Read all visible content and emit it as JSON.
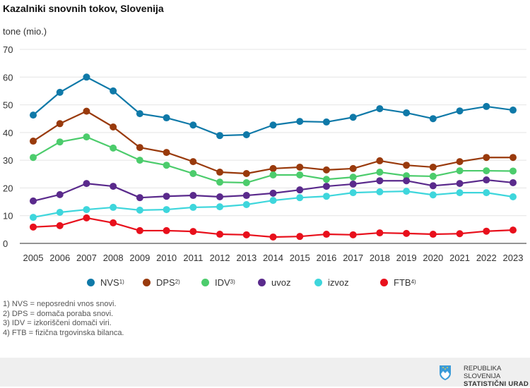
{
  "header": {
    "title": "Kazalniki snovnih tokov, Slovenija",
    "unit_label": "tone (mio.)"
  },
  "chart_data": {
    "type": "line",
    "title": "Kazalniki snovnih tokov, Slovenija",
    "xlabel": "",
    "ylabel": "tone (mio.)",
    "ylim": [
      0,
      70
    ],
    "yticks": [
      0,
      10,
      20,
      30,
      40,
      50,
      60,
      70
    ],
    "grid": true,
    "legend_position": "bottom",
    "x": [
      "2005",
      "2006",
      "2007",
      "2008",
      "2009",
      "2010",
      "2011",
      "2012",
      "2013",
      "2014",
      "2015",
      "2016",
      "2017",
      "2018",
      "2019",
      "2020",
      "2021",
      "2022",
      "2023"
    ],
    "series": [
      {
        "name": "NVS",
        "footnote": "1)",
        "color": "#0f79a8",
        "values": [
          46.3,
          54.5,
          60.0,
          55.0,
          46.8,
          45.3,
          42.7,
          38.9,
          39.2,
          42.7,
          44.0,
          43.8,
          45.5,
          48.6,
          47.1,
          45.0,
          47.8,
          49.4,
          48.1
        ]
      },
      {
        "name": "DPS",
        "footnote": "2)",
        "color": "#993a0c",
        "values": [
          36.9,
          43.2,
          47.7,
          42.0,
          34.6,
          32.8,
          29.5,
          25.7,
          25.2,
          27.0,
          27.5,
          26.5,
          27.0,
          29.8,
          28.2,
          27.5,
          29.5,
          31.0,
          31.0
        ]
      },
      {
        "name": "IDV",
        "footnote": "3)",
        "color": "#4ccc6c",
        "values": [
          31.0,
          36.6,
          38.4,
          34.4,
          30.0,
          28.2,
          25.2,
          22.1,
          21.9,
          24.7,
          24.7,
          23.1,
          23.9,
          25.7,
          24.4,
          24.2,
          26.2,
          26.2,
          26.1
        ]
      },
      {
        "name": "uvoz",
        "footnote": "",
        "color": "#5a2a8c",
        "values": [
          15.3,
          17.6,
          21.6,
          20.6,
          16.5,
          17.0,
          17.3,
          16.8,
          17.3,
          18.1,
          19.3,
          20.6,
          21.4,
          22.6,
          22.6,
          20.8,
          21.6,
          22.9,
          21.9
        ]
      },
      {
        "name": "izvoz",
        "footnote": "",
        "color": "#3ed6dc",
        "values": [
          9.4,
          11.2,
          12.2,
          13.0,
          12.0,
          12.2,
          13.0,
          13.2,
          14.0,
          15.5,
          16.5,
          17.0,
          18.3,
          18.6,
          18.8,
          17.5,
          18.3,
          18.3,
          16.8
        ]
      },
      {
        "name": "FTB",
        "footnote": "4)",
        "color": "#e8101c",
        "values": [
          5.9,
          6.4,
          9.2,
          7.4,
          4.6,
          4.6,
          4.3,
          3.3,
          3.1,
          2.3,
          2.5,
          3.3,
          3.1,
          3.8,
          3.6,
          3.3,
          3.5,
          4.4,
          4.8
        ]
      }
    ]
  },
  "legend": [
    {
      "label": "NVS",
      "sup": "1)",
      "color": "#0f79a8"
    },
    {
      "label": "DPS",
      "sup": "2)",
      "color": "#993a0c"
    },
    {
      "label": "IDV",
      "sup": "3)",
      "color": "#4ccc6c"
    },
    {
      "label": "uvoz",
      "sup": "",
      "color": "#5a2a8c"
    },
    {
      "label": "izvoz",
      "sup": "",
      "color": "#3ed6dc"
    },
    {
      "label": "FTB",
      "sup": "4)",
      "color": "#e8101c"
    }
  ],
  "footnotes": [
    "1) NVS = neposredni vnos snovi.",
    "2) DPS = domača poraba snovi.",
    "3) IDV = izkoriščeni domači viri.",
    "4) FTB = fizična trgovinska bilanca."
  ],
  "footer": {
    "brand_line1": "REPUBLIKA SLOVENIJA",
    "brand_line2": "STATISTIČNI URAD",
    "logo_icon": "coat-of-arms-shield-icon"
  }
}
